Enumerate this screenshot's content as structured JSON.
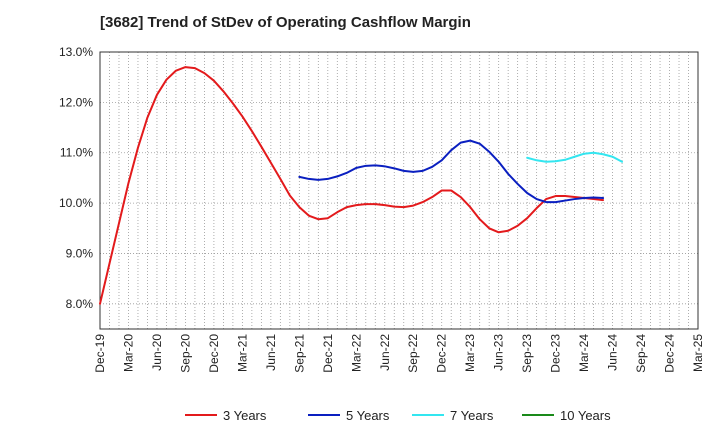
{
  "chart_data": {
    "type": "line",
    "title": "[3682]  Trend of StDev of Operating Cashflow Margin",
    "xlabel": "",
    "ylabel": "",
    "ylim": [
      7.5,
      13.0
    ],
    "yticks": [
      "8.0%",
      "9.0%",
      "10.0%",
      "11.0%",
      "12.0%",
      "13.0%"
    ],
    "ytick_values": [
      8.0,
      9.0,
      10.0,
      11.0,
      12.0,
      13.0
    ],
    "xticks": [
      "Dec-19",
      "Mar-20",
      "Jun-20",
      "Sep-20",
      "Dec-20",
      "Mar-21",
      "Jun-21",
      "Sep-21",
      "Dec-21",
      "Mar-22",
      "Jun-22",
      "Sep-22",
      "Dec-22",
      "Mar-23",
      "Jun-23",
      "Sep-23",
      "Dec-23",
      "Mar-24",
      "Jun-24",
      "Sep-24",
      "Dec-24",
      "Mar-25"
    ],
    "grid": true,
    "legend_position": "bottom",
    "series": [
      {
        "name": "3 Years",
        "color": "#e31a1c",
        "points": [
          [
            "Dec-19",
            8.0
          ],
          [
            "Jan-20",
            8.8
          ],
          [
            "Feb-20",
            9.6
          ],
          [
            "Mar-20",
            10.4
          ],
          [
            "Apr-20",
            11.1
          ],
          [
            "May-20",
            11.7
          ],
          [
            "Jun-20",
            12.15
          ],
          [
            "Jul-20",
            12.45
          ],
          [
            "Aug-20",
            12.63
          ],
          [
            "Sep-20",
            12.7
          ],
          [
            "Oct-20",
            12.68
          ],
          [
            "Nov-20",
            12.58
          ],
          [
            "Dec-20",
            12.43
          ],
          [
            "Jan-21",
            12.22
          ],
          [
            "Feb-21",
            11.98
          ],
          [
            "Mar-21",
            11.72
          ],
          [
            "Apr-21",
            11.43
          ],
          [
            "May-21",
            11.12
          ],
          [
            "Jun-21",
            10.8
          ],
          [
            "Jul-21",
            10.48
          ],
          [
            "Aug-21",
            10.15
          ],
          [
            "Sep-21",
            9.92
          ],
          [
            "Oct-21",
            9.75
          ],
          [
            "Nov-21",
            9.68
          ],
          [
            "Dec-21",
            9.7
          ],
          [
            "Jan-22",
            9.82
          ],
          [
            "Feb-22",
            9.92
          ],
          [
            "Mar-22",
            9.96
          ],
          [
            "Apr-22",
            9.98
          ],
          [
            "May-22",
            9.98
          ],
          [
            "Jun-22",
            9.96
          ],
          [
            "Jul-22",
            9.93
          ],
          [
            "Aug-22",
            9.92
          ],
          [
            "Sep-22",
            9.95
          ],
          [
            "Oct-22",
            10.02
          ],
          [
            "Nov-22",
            10.12
          ],
          [
            "Dec-22",
            10.25
          ],
          [
            "Jan-23",
            10.25
          ],
          [
            "Feb-23",
            10.12
          ],
          [
            "Mar-23",
            9.92
          ],
          [
            "Apr-23",
            9.68
          ],
          [
            "May-23",
            9.5
          ],
          [
            "Jun-23",
            9.42
          ],
          [
            "Jul-23",
            9.45
          ],
          [
            "Aug-23",
            9.55
          ],
          [
            "Sep-23",
            9.7
          ],
          [
            "Oct-23",
            9.9
          ],
          [
            "Nov-23",
            10.08
          ],
          [
            "Dec-23",
            10.14
          ],
          [
            "Jan-24",
            10.14
          ],
          [
            "Feb-24",
            10.12
          ],
          [
            "Mar-24",
            10.1
          ],
          [
            "Apr-24",
            10.08
          ],
          [
            "May-24",
            10.06
          ]
        ]
      },
      {
        "name": "5 Years",
        "color": "#0a1fc0",
        "points": [
          [
            "Sep-21",
            10.52
          ],
          [
            "Oct-21",
            10.48
          ],
          [
            "Nov-21",
            10.46
          ],
          [
            "Dec-21",
            10.48
          ],
          [
            "Jan-22",
            10.53
          ],
          [
            "Feb-22",
            10.6
          ],
          [
            "Mar-22",
            10.7
          ],
          [
            "Apr-22",
            10.74
          ],
          [
            "May-22",
            10.75
          ],
          [
            "Jun-22",
            10.73
          ],
          [
            "Jul-22",
            10.69
          ],
          [
            "Aug-22",
            10.64
          ],
          [
            "Sep-22",
            10.62
          ],
          [
            "Oct-22",
            10.64
          ],
          [
            "Nov-22",
            10.72
          ],
          [
            "Dec-22",
            10.85
          ],
          [
            "Jan-23",
            11.05
          ],
          [
            "Feb-23",
            11.2
          ],
          [
            "Mar-23",
            11.24
          ],
          [
            "Apr-23",
            11.18
          ],
          [
            "May-23",
            11.02
          ],
          [
            "Jun-23",
            10.82
          ],
          [
            "Jul-23",
            10.58
          ],
          [
            "Aug-23",
            10.38
          ],
          [
            "Sep-23",
            10.2
          ],
          [
            "Oct-23",
            10.08
          ],
          [
            "Nov-23",
            10.02
          ],
          [
            "Dec-23",
            10.02
          ],
          [
            "Jan-24",
            10.05
          ],
          [
            "Feb-24",
            10.08
          ],
          [
            "Mar-24",
            10.1
          ],
          [
            "Apr-24",
            10.11
          ],
          [
            "May-24",
            10.1
          ]
        ]
      },
      {
        "name": "7 Years",
        "color": "#33e6f0",
        "points": [
          [
            "Sep-23",
            10.9
          ],
          [
            "Oct-23",
            10.85
          ],
          [
            "Nov-23",
            10.82
          ],
          [
            "Dec-23",
            10.83
          ],
          [
            "Jan-24",
            10.86
          ],
          [
            "Feb-24",
            10.92
          ],
          [
            "Mar-24",
            10.98
          ],
          [
            "Apr-24",
            11.0
          ],
          [
            "May-24",
            10.97
          ],
          [
            "Jun-24",
            10.92
          ],
          [
            "Jul-24",
            10.82
          ]
        ]
      },
      {
        "name": "10 Years",
        "color": "#1a8a1a",
        "points": []
      }
    ]
  }
}
